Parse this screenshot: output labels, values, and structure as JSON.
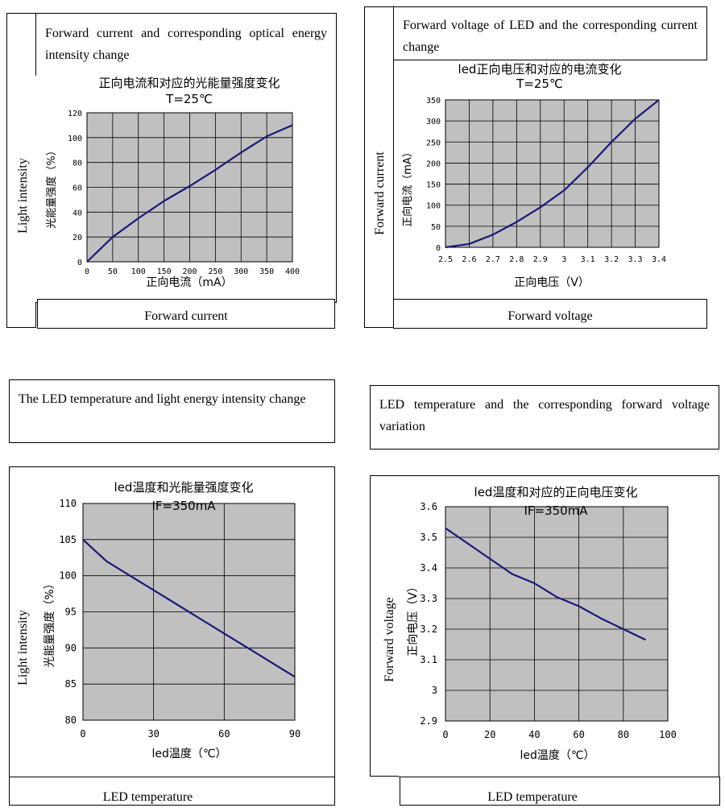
{
  "panels": [
    {
      "caption": "Forward current and corresponding optical energy intensity change",
      "y_caption": "Light intensity",
      "x_caption": "Forward current"
    },
    {
      "caption": "Forward voltage of LED and the corresponding current change",
      "y_caption": "Forward current",
      "x_caption": "Forward voltage"
    },
    {
      "caption": "The LED temperature and light energy intensity change",
      "y_caption": "Light intensity",
      "x_caption": "LED temperature"
    },
    {
      "caption": "LED temperature and the corresponding forward voltage variation",
      "y_caption": "Forward voltage",
      "x_caption": "LED temperature"
    }
  ],
  "chart_data": [
    {
      "type": "line",
      "title": "正向电流和对应的光能量强度变化",
      "subtitle": "T=25℃",
      "xlabel": "正向电流（mA）",
      "ylabel": "光能量强度（%）",
      "xlim": [
        0,
        400
      ],
      "ylim": [
        0,
        120
      ],
      "x_ticks": [
        "0",
        "50",
        "100",
        "150",
        "200",
        "250",
        "300",
        "350",
        "400"
      ],
      "y_ticks": [
        "0",
        "20",
        "40",
        "60",
        "80",
        "100",
        "120"
      ],
      "grid": true,
      "plot_bg": "#c0c0c0",
      "line_color": "#1a1a7a",
      "series": [
        {
          "x": [
            0,
            50,
            100,
            150,
            200,
            250,
            300,
            350,
            400
          ],
          "y": [
            0,
            20,
            35,
            49,
            61,
            74,
            88,
            101,
            110
          ]
        }
      ]
    },
    {
      "type": "line",
      "title": "led正向电压和对应的电流变化",
      "subtitle": "T=25℃",
      "xlabel": "正向电压（V）",
      "ylabel": "正向电流（mA）",
      "xlim": [
        2.5,
        3.4
      ],
      "ylim": [
        0,
        350
      ],
      "x_ticks": [
        "2.5",
        "2.6",
        "2.7",
        "2.8",
        "2.9",
        "3",
        "3.1",
        "3.2",
        "3.3",
        "3.4"
      ],
      "y_ticks": [
        "0",
        "50",
        "100",
        "150",
        "200",
        "250",
        "300",
        "350"
      ],
      "grid": true,
      "plot_bg": "#c0c0c0",
      "line_color": "#1a1a7a",
      "series": [
        {
          "x": [
            2.5,
            2.6,
            2.7,
            2.8,
            2.9,
            3.0,
            3.1,
            3.2,
            3.3,
            3.4
          ],
          "y": [
            0,
            8,
            30,
            60,
            95,
            135,
            190,
            250,
            305,
            350
          ]
        }
      ]
    },
    {
      "type": "line",
      "title": "led温度和光能量强度变化",
      "subtitle": "IF=350mA",
      "xlabel": "led温度（℃）",
      "ylabel": "光能量强度（%）",
      "xlim": [
        0,
        90
      ],
      "ylim": [
        80,
        110
      ],
      "x_ticks": [
        "0",
        "30",
        "60",
        "90"
      ],
      "y_ticks": [
        "80",
        "85",
        "90",
        "95",
        "100",
        "105",
        "110"
      ],
      "grid": true,
      "plot_bg": "#c0c0c0",
      "line_color": "#1a1a7a",
      "series": [
        {
          "x": [
            0,
            10,
            20,
            30,
            40,
            50,
            60,
            70,
            80,
            90
          ],
          "y": [
            105,
            102,
            100,
            98,
            96,
            94,
            92,
            90,
            88,
            86
          ]
        }
      ]
    },
    {
      "type": "line",
      "title": "led温度和对应的正向电压变化",
      "subtitle": "IF=350mA",
      "xlabel": "led温度（℃）",
      "ylabel": "正向电压（V）",
      "xlim": [
        0,
        100
      ],
      "ylim": [
        2.9,
        3.6
      ],
      "x_ticks": [
        "0",
        "20",
        "40",
        "60",
        "80",
        "100"
      ],
      "y_ticks": [
        "2.9",
        "3",
        "3.1",
        "3.2",
        "3.3",
        "3.4",
        "3.5",
        "3.6"
      ],
      "grid": true,
      "plot_bg": "#c0c0c0",
      "line_color": "#1a1a7a",
      "series": [
        {
          "x": [
            0,
            10,
            20,
            30,
            40,
            50,
            60,
            70,
            80,
            90
          ],
          "y": [
            3.53,
            3.48,
            3.43,
            3.38,
            3.35,
            3.305,
            3.275,
            3.235,
            3.2,
            3.165
          ]
        }
      ]
    }
  ]
}
